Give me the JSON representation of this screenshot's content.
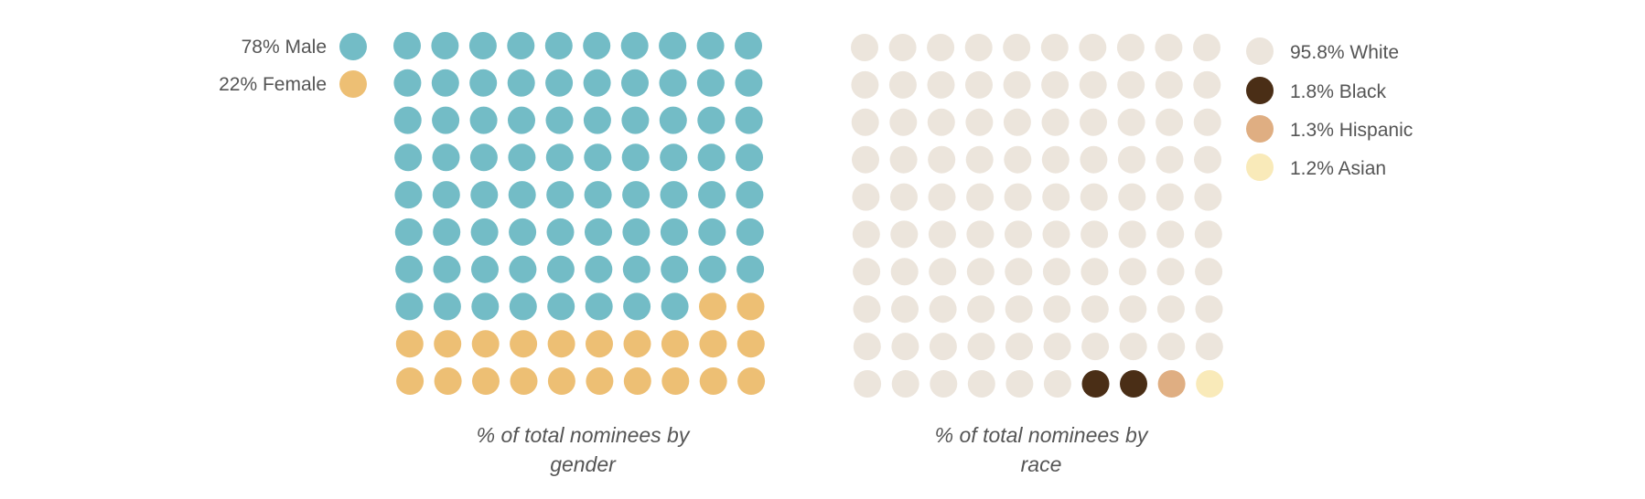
{
  "chart_data": [
    {
      "type": "waffle",
      "title_line1": "% of total nominees by",
      "title_line2": "gender",
      "grid": {
        "rows": 10,
        "cols": 10
      },
      "series": [
        {
          "name": "Male",
          "label": "78% Male",
          "value": 78,
          "color": "#73bcc6"
        },
        {
          "name": "Female",
          "label": "22% Female",
          "value": 22,
          "color": "#edbf74"
        }
      ],
      "legend_position": "left"
    },
    {
      "type": "waffle",
      "title_line1": "% of total nominees by",
      "title_line2": "race",
      "grid": {
        "rows": 10,
        "cols": 10
      },
      "series": [
        {
          "name": "White",
          "label": "95.8% White",
          "value": 95.8,
          "dots": 96,
          "color": "#ece5dc"
        },
        {
          "name": "Black",
          "label": "1.8% Black",
          "value": 1.8,
          "dots": 2,
          "color": "#4a2e16"
        },
        {
          "name": "Hispanic",
          "label": "1.3% Hispanic",
          "value": 1.3,
          "dots": 1,
          "color": "#dfae82"
        },
        {
          "name": "Asian",
          "label": "1.2% Asian",
          "value": 1.2,
          "dots": 1,
          "color": "#f9eab9"
        }
      ],
      "legend_position": "right"
    }
  ]
}
